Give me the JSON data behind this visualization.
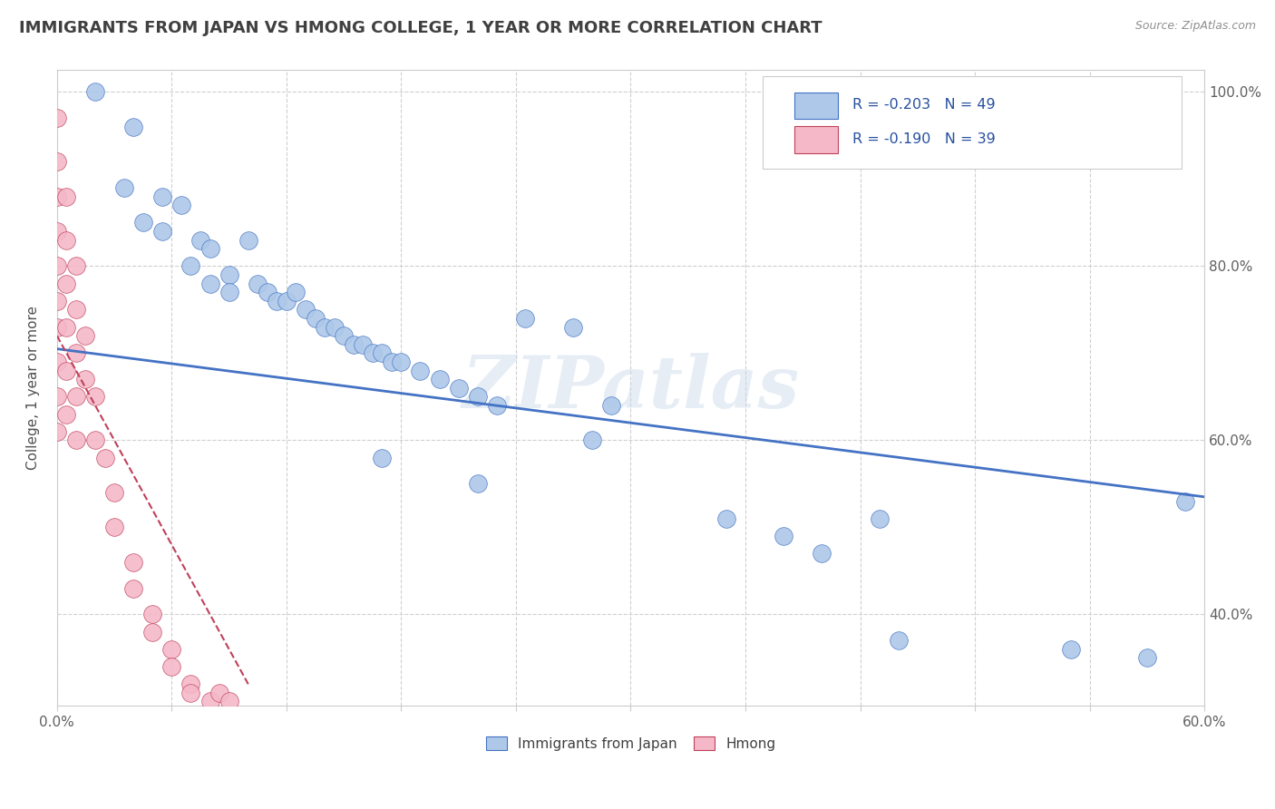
{
  "title": "IMMIGRANTS FROM JAPAN VS HMONG COLLEGE, 1 YEAR OR MORE CORRELATION CHART",
  "source": "Source: ZipAtlas.com",
  "ylabel": "College, 1 year or more",
  "watermark": "ZIPatlas",
  "legend_blue_label": "Immigrants from Japan",
  "legend_pink_label": "Hmong",
  "R_blue": -0.203,
  "N_blue": 49,
  "R_pink": -0.19,
  "N_pink": 39,
  "blue_color": "#adc8e8",
  "blue_line_color": "#4472c4",
  "pink_color": "#f4b8c8",
  "pink_line_color": "#c0405a",
  "title_color": "#404040",
  "source_color": "#909090",
  "legend_text_color": "#2850a0",
  "xmin": 0.0,
  "xmax": 0.6,
  "ymin": 0.295,
  "ymax": 1.025,
  "y_ticks": [
    0.4,
    0.6,
    0.8,
    1.0
  ],
  "blue_line_x0": 0.0,
  "blue_line_y0": 0.705,
  "blue_line_x1": 0.6,
  "blue_line_y1": 0.535,
  "pink_line_x0": 0.0,
  "pink_line_y0": 0.72,
  "pink_line_x1": 0.1,
  "pink_line_y1": 0.32,
  "blue_points_x": [
    0.02,
    0.04,
    0.035,
    0.055,
    0.065,
    0.045,
    0.055,
    0.075,
    0.08,
    0.07,
    0.09,
    0.08,
    0.09,
    0.1,
    0.105,
    0.11,
    0.115,
    0.12,
    0.125,
    0.13,
    0.135,
    0.14,
    0.145,
    0.15,
    0.155,
    0.16,
    0.165,
    0.17,
    0.175,
    0.18,
    0.19,
    0.2,
    0.21,
    0.22,
    0.23,
    0.245,
    0.27,
    0.29,
    0.28,
    0.17,
    0.22,
    0.35,
    0.38,
    0.4,
    0.43,
    0.44,
    0.53,
    0.57,
    0.59
  ],
  "blue_points_y": [
    1.0,
    0.96,
    0.89,
    0.88,
    0.87,
    0.85,
    0.84,
    0.83,
    0.82,
    0.8,
    0.79,
    0.78,
    0.77,
    0.83,
    0.78,
    0.77,
    0.76,
    0.76,
    0.77,
    0.75,
    0.74,
    0.73,
    0.73,
    0.72,
    0.71,
    0.71,
    0.7,
    0.7,
    0.69,
    0.69,
    0.68,
    0.67,
    0.66,
    0.65,
    0.64,
    0.74,
    0.73,
    0.64,
    0.6,
    0.58,
    0.55,
    0.51,
    0.49,
    0.47,
    0.51,
    0.37,
    0.36,
    0.35,
    0.53
  ],
  "pink_points_x": [
    0.0,
    0.0,
    0.0,
    0.0,
    0.0,
    0.0,
    0.0,
    0.0,
    0.0,
    0.0,
    0.005,
    0.005,
    0.005,
    0.005,
    0.005,
    0.005,
    0.01,
    0.01,
    0.01,
    0.01,
    0.01,
    0.015,
    0.015,
    0.02,
    0.02,
    0.025,
    0.03,
    0.03,
    0.04,
    0.04,
    0.05,
    0.05,
    0.06,
    0.06,
    0.07,
    0.07,
    0.08,
    0.085,
    0.09
  ],
  "pink_points_y": [
    0.97,
    0.92,
    0.88,
    0.84,
    0.8,
    0.76,
    0.73,
    0.69,
    0.65,
    0.61,
    0.88,
    0.83,
    0.78,
    0.73,
    0.68,
    0.63,
    0.8,
    0.75,
    0.7,
    0.65,
    0.6,
    0.72,
    0.67,
    0.65,
    0.6,
    0.58,
    0.54,
    0.5,
    0.46,
    0.43,
    0.4,
    0.38,
    0.36,
    0.34,
    0.32,
    0.31,
    0.3,
    0.31,
    0.3
  ]
}
